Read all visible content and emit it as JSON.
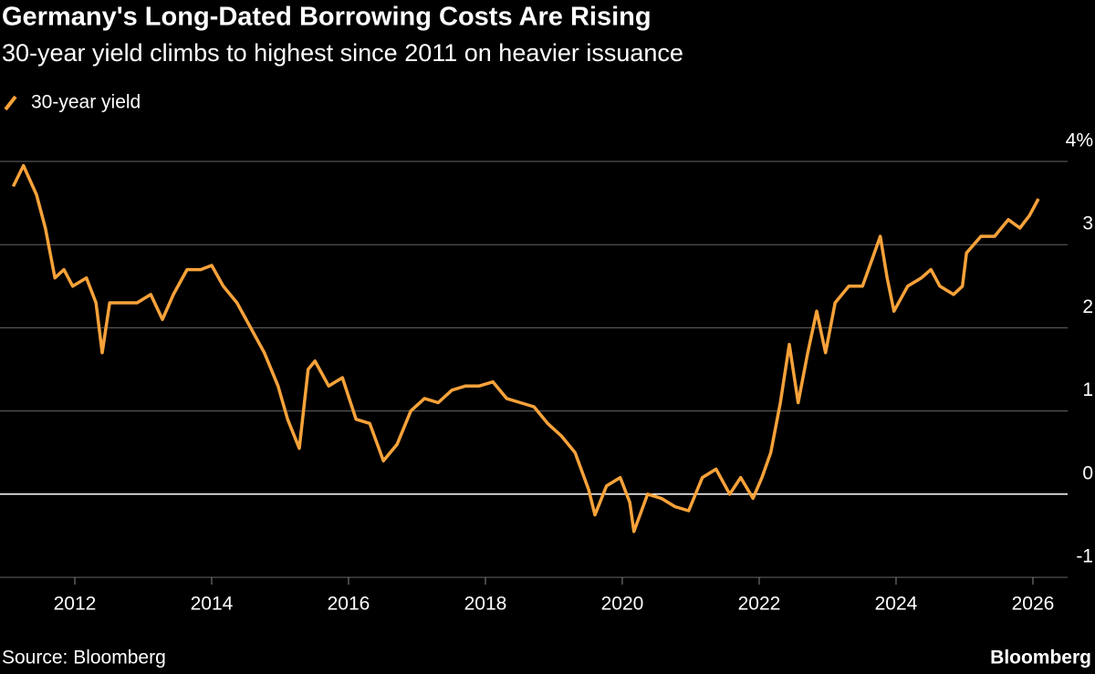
{
  "chart_data": {
    "type": "line",
    "title": "Germany's Long-Dated Borrowing Costs Are Rising",
    "subtitle": "30-year yield climbs to highest since 2011 on heavier issuance",
    "source": "Source: Bloomberg",
    "brand": "Bloomberg",
    "x": [
      2011.1,
      2011.25,
      2011.44,
      2011.57,
      2011.71,
      2011.84,
      2011.97,
      2012.17,
      2012.31,
      2012.4,
      2012.51,
      2012.71,
      2012.91,
      2013.11,
      2013.28,
      2013.44,
      2013.64,
      2013.84,
      2014.0,
      2014.17,
      2014.37,
      2014.57,
      2014.77,
      2014.97,
      2015.11,
      2015.28,
      2015.41,
      2015.51,
      2015.71,
      2015.91,
      2016.11,
      2016.31,
      2016.51,
      2016.71,
      2016.91,
      2017.11,
      2017.31,
      2017.51,
      2017.71,
      2017.91,
      2018.11,
      2018.31,
      2018.51,
      2018.71,
      2018.91,
      2019.11,
      2019.31,
      2019.51,
      2019.6,
      2019.77,
      2019.97,
      2020.11,
      2020.17,
      2020.37,
      2020.57,
      2020.77,
      2020.97,
      2021.17,
      2021.37,
      2021.57,
      2021.73,
      2021.91,
      2022.04,
      2022.17,
      2022.31,
      2022.44,
      2022.57,
      2022.71,
      2022.84,
      2022.97,
      2023.11,
      2023.31,
      2023.51,
      2023.64,
      2023.77,
      2023.87,
      2023.97,
      2024.17,
      2024.37,
      2024.51,
      2024.64,
      2024.84,
      2024.97,
      2025.03,
      2025.24,
      2025.44,
      2025.64,
      2025.81,
      2025.95,
      2026.08
    ],
    "series": [
      {
        "name": "30-year yield",
        "color": "#f7a23a",
        "values": [
          3.7,
          3.95,
          3.6,
          3.2,
          2.6,
          2.7,
          2.5,
          2.6,
          2.3,
          1.7,
          2.3,
          2.3,
          2.3,
          2.4,
          2.1,
          2.4,
          2.7,
          2.7,
          2.75,
          2.5,
          2.3,
          2.0,
          1.7,
          1.3,
          0.9,
          0.55,
          1.5,
          1.6,
          1.3,
          1.4,
          0.9,
          0.85,
          0.4,
          0.6,
          1.0,
          1.15,
          1.1,
          1.25,
          1.3,
          1.3,
          1.35,
          1.15,
          1.1,
          1.05,
          0.85,
          0.7,
          0.5,
          0.05,
          -0.25,
          0.1,
          0.2,
          -0.1,
          -0.45,
          0.0,
          -0.05,
          -0.15,
          -0.2,
          0.2,
          0.3,
          0.0,
          0.2,
          -0.05,
          0.2,
          0.5,
          1.1,
          1.8,
          1.1,
          1.7,
          2.2,
          1.7,
          2.3,
          2.5,
          2.5,
          2.8,
          3.1,
          2.6,
          2.2,
          2.5,
          2.6,
          2.7,
          2.5,
          2.4,
          2.5,
          2.9,
          3.1,
          3.1,
          3.3,
          3.2,
          3.35,
          3.55
        ]
      }
    ],
    "xlim": [
      2010.907,
      2026.507
    ],
    "xticks": [
      2012,
      2014,
      2016,
      2018,
      2020,
      2022,
      2024,
      2026
    ],
    "ylim": [
      -1,
      4
    ],
    "yticks": [
      -1,
      0,
      1,
      2,
      3,
      {
        "value": 4,
        "label": "4%"
      }
    ],
    "grid": true
  }
}
